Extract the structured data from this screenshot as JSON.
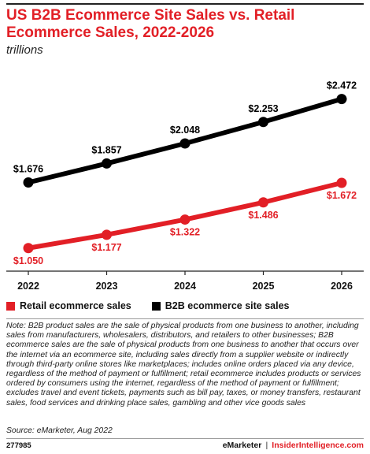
{
  "header": {
    "title": "US B2B Ecommerce Site Sales vs. Retail Ecommerce Sales, 2022-2026",
    "subtitle": "trillions"
  },
  "chart_data": {
    "type": "line",
    "title": "US B2B Ecommerce Site Sales vs. Retail Ecommerce Sales, 2022-2026",
    "subtitle": "trillions",
    "categories": [
      "2022",
      "2023",
      "2024",
      "2025",
      "2026"
    ],
    "series": [
      {
        "name": "Retail ecommerce sales",
        "color": "#e21f26",
        "values": [
          1.05,
          1.177,
          1.322,
          1.486,
          1.672
        ],
        "labels": [
          "$1.050",
          "$1.177",
          "$1.322",
          "$1.486",
          "$1.672"
        ],
        "label_position": "below"
      },
      {
        "name": "B2B ecommerce site sales",
        "color": "#000000",
        "values": [
          1.676,
          1.857,
          2.048,
          2.253,
          2.472
        ],
        "labels": [
          "$1.676",
          "$1.857",
          "$2.048",
          "$2.253",
          "$2.472"
        ],
        "label_position": "above"
      }
    ],
    "ylim": [
      0.8,
      2.8
    ],
    "grid": false,
    "legend_position": "bottom-left"
  },
  "legend": {
    "items": [
      {
        "label": "Retail ecommerce sales",
        "color": "#e21f26"
      },
      {
        "label": "B2B ecommerce site sales",
        "color": "#000000"
      }
    ]
  },
  "footnote": {
    "note": "Note: B2B product sales are the sale of physical products from one business to another, including sales from manufacturers, wholesalers, distributors, and retailers to other businesses; B2B ecommerce sales are the sale of physical products from one business to another that occurs over the internet via an ecommerce site, including sales directly from a supplier website or indirectly through third-party online stores like marketplaces; includes online orders placed via any device, regardless of the method of payment or fulfillment; retail ecommerce includes products or services ordered by consumers using the internet, regardless of the method of payment or fulfillment; excludes travel and event tickets, payments such as bill pay, taxes, or money transfers, restaurant sales, food services and drinking place sales, gambling and other vice goods sales",
    "source": "Source: eMarketer, Aug 2022"
  },
  "footer": {
    "chart_id": "277985",
    "brand_1": "eMarketer",
    "separator": "|",
    "brand_2": "InsiderIntelligence.com"
  },
  "colors": {
    "accent": "#e21f26",
    "series_b2b": "#000000",
    "series_retail": "#e21f26"
  }
}
